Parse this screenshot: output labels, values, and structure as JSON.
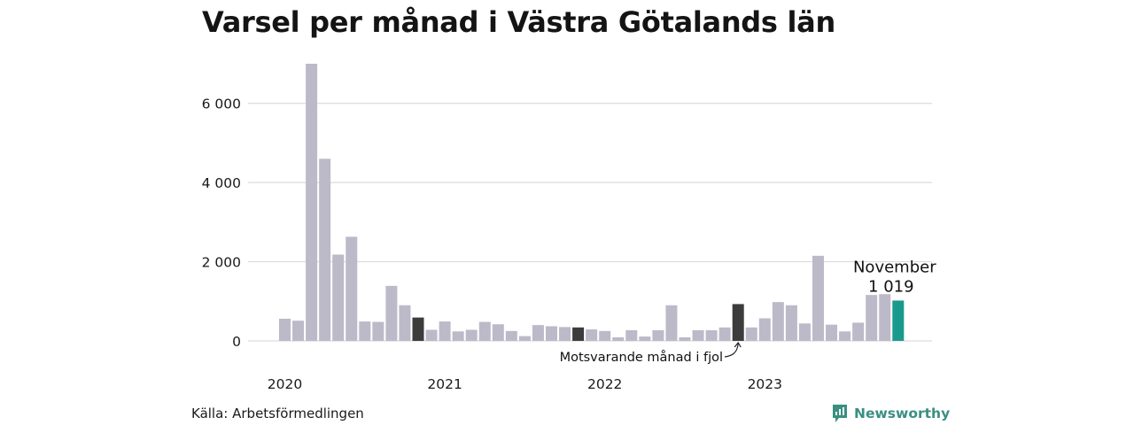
{
  "title": "Varsel per månad i Västra Götalands län",
  "source": "Källa: Arbetsförmedlingen",
  "brand": {
    "name": "Newsworthy",
    "color": "#3a8f82",
    "icon": "newsworthy-logo-icon"
  },
  "colors": {
    "bar": "#bcbac8",
    "previous_year": "#3c3c3c",
    "current": "#1a9a8c",
    "grid": "#dcdcdc"
  },
  "annotations": {
    "current_month": "November",
    "current_value": "1 019",
    "previous_year": "Motsvarande månad i fjol"
  },
  "chart_data": {
    "type": "bar",
    "title": "Varsel per månad i Västra Götalands län",
    "xlabel": "",
    "ylabel": "",
    "ylim": [
      0,
      7000
    ],
    "yticks": [
      0,
      2000,
      4000,
      6000
    ],
    "ytick_labels": [
      "0",
      "2 000",
      "4 000",
      "6 000"
    ],
    "grid": true,
    "legend": "none",
    "x_tick_labels": [
      "2020",
      "2021",
      "2022",
      "2023"
    ],
    "x_tick_indices": [
      0,
      12,
      24,
      36
    ],
    "categories": [
      "2020-01",
      "2020-02",
      "2020-03",
      "2020-04",
      "2020-05",
      "2020-06",
      "2020-07",
      "2020-08",
      "2020-09",
      "2020-10",
      "2020-11",
      "2020-12",
      "2021-01",
      "2021-02",
      "2021-03",
      "2021-04",
      "2021-05",
      "2021-06",
      "2021-07",
      "2021-08",
      "2021-09",
      "2021-10",
      "2021-11",
      "2021-12",
      "2022-01",
      "2022-02",
      "2022-03",
      "2022-04",
      "2022-05",
      "2022-06",
      "2022-07",
      "2022-08",
      "2022-09",
      "2022-10",
      "2022-11",
      "2022-12",
      "2023-01",
      "2023-02",
      "2023-03",
      "2023-04",
      "2023-05",
      "2023-06",
      "2023-07",
      "2023-08",
      "2023-09",
      "2023-10",
      "2023-11"
    ],
    "values": [
      560,
      510,
      7000,
      4600,
      2180,
      2630,
      490,
      480,
      1390,
      900,
      590,
      280,
      490,
      240,
      280,
      480,
      420,
      250,
      120,
      400,
      370,
      350,
      340,
      290,
      250,
      90,
      270,
      110,
      270,
      900,
      90,
      270,
      270,
      340,
      930,
      340,
      570,
      980,
      900,
      440,
      2150,
      410,
      240,
      460,
      1160,
      1180,
      1019
    ],
    "highlight_previous_year": [
      10,
      22,
      34
    ],
    "highlight_current": 46
  }
}
